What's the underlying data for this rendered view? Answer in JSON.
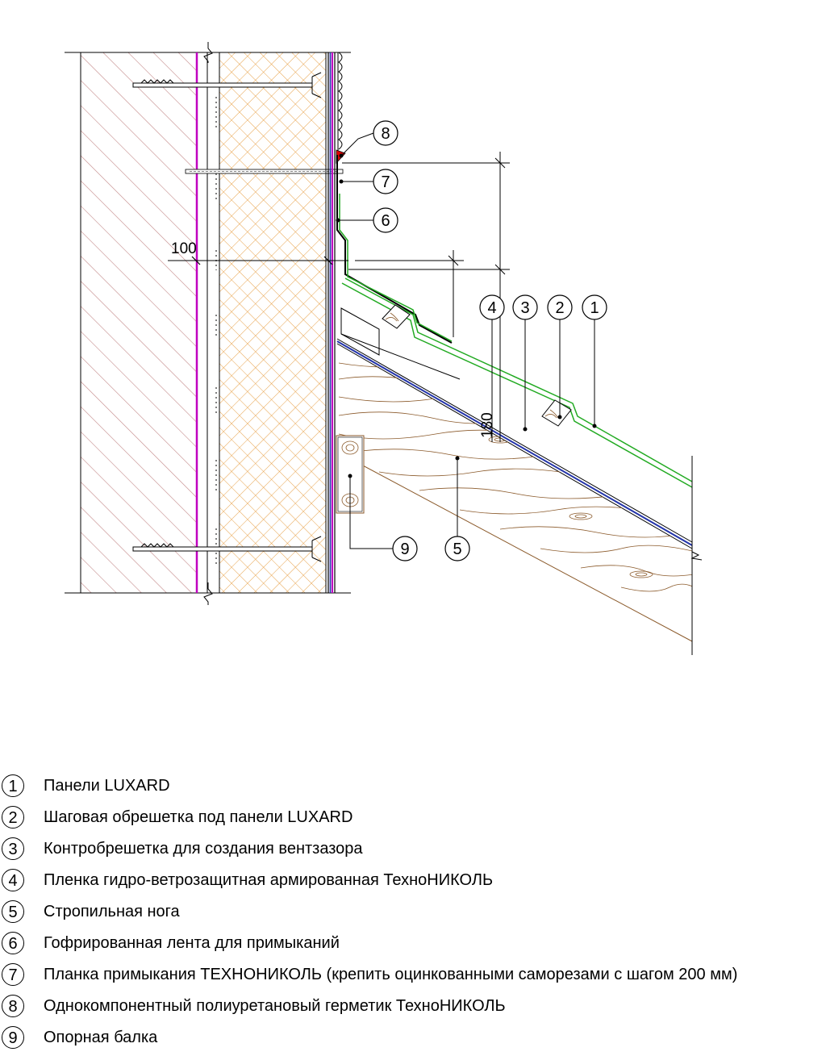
{
  "drawing": {
    "dimensions": {
      "insulation_thickness": "100",
      "offset_height": "180"
    },
    "callouts": [
      "1",
      "2",
      "3",
      "4",
      "5",
      "6",
      "7",
      "8",
      "9"
    ],
    "colors": {
      "wall_hatch": "#c48b8b",
      "insulation_hatch": "#e8a24a",
      "membrane": "#c000c0",
      "panel": "#22aa22",
      "film": "#2233aa",
      "sealant": "#e00000",
      "wood": "#8b5a2b",
      "line": "#000000"
    }
  },
  "legend": [
    {
      "num": "1",
      "text": "Панели LUXARD"
    },
    {
      "num": "2",
      "text": "Шаговая обрешетка под панели LUXARD"
    },
    {
      "num": "3",
      "text": "Контробрешетка для создания вентзазора"
    },
    {
      "num": "4",
      "text": "Пленка гидро-ветрозащитная армированная ТехноНИКОЛЬ"
    },
    {
      "num": "5",
      "text": "Стропильная нога"
    },
    {
      "num": "6",
      "text": "Гофрированная лента для примыканий"
    },
    {
      "num": "7",
      "text": "Планка примыкания ТЕХНОНИКОЛЬ (крепить оцинкованными саморезами с шагом 200 мм)"
    },
    {
      "num": "8",
      "text": "Однокомпонентный полиуретановый герметик ТехноНИКОЛЬ"
    },
    {
      "num": "9",
      "text": "Опорная балка"
    }
  ]
}
